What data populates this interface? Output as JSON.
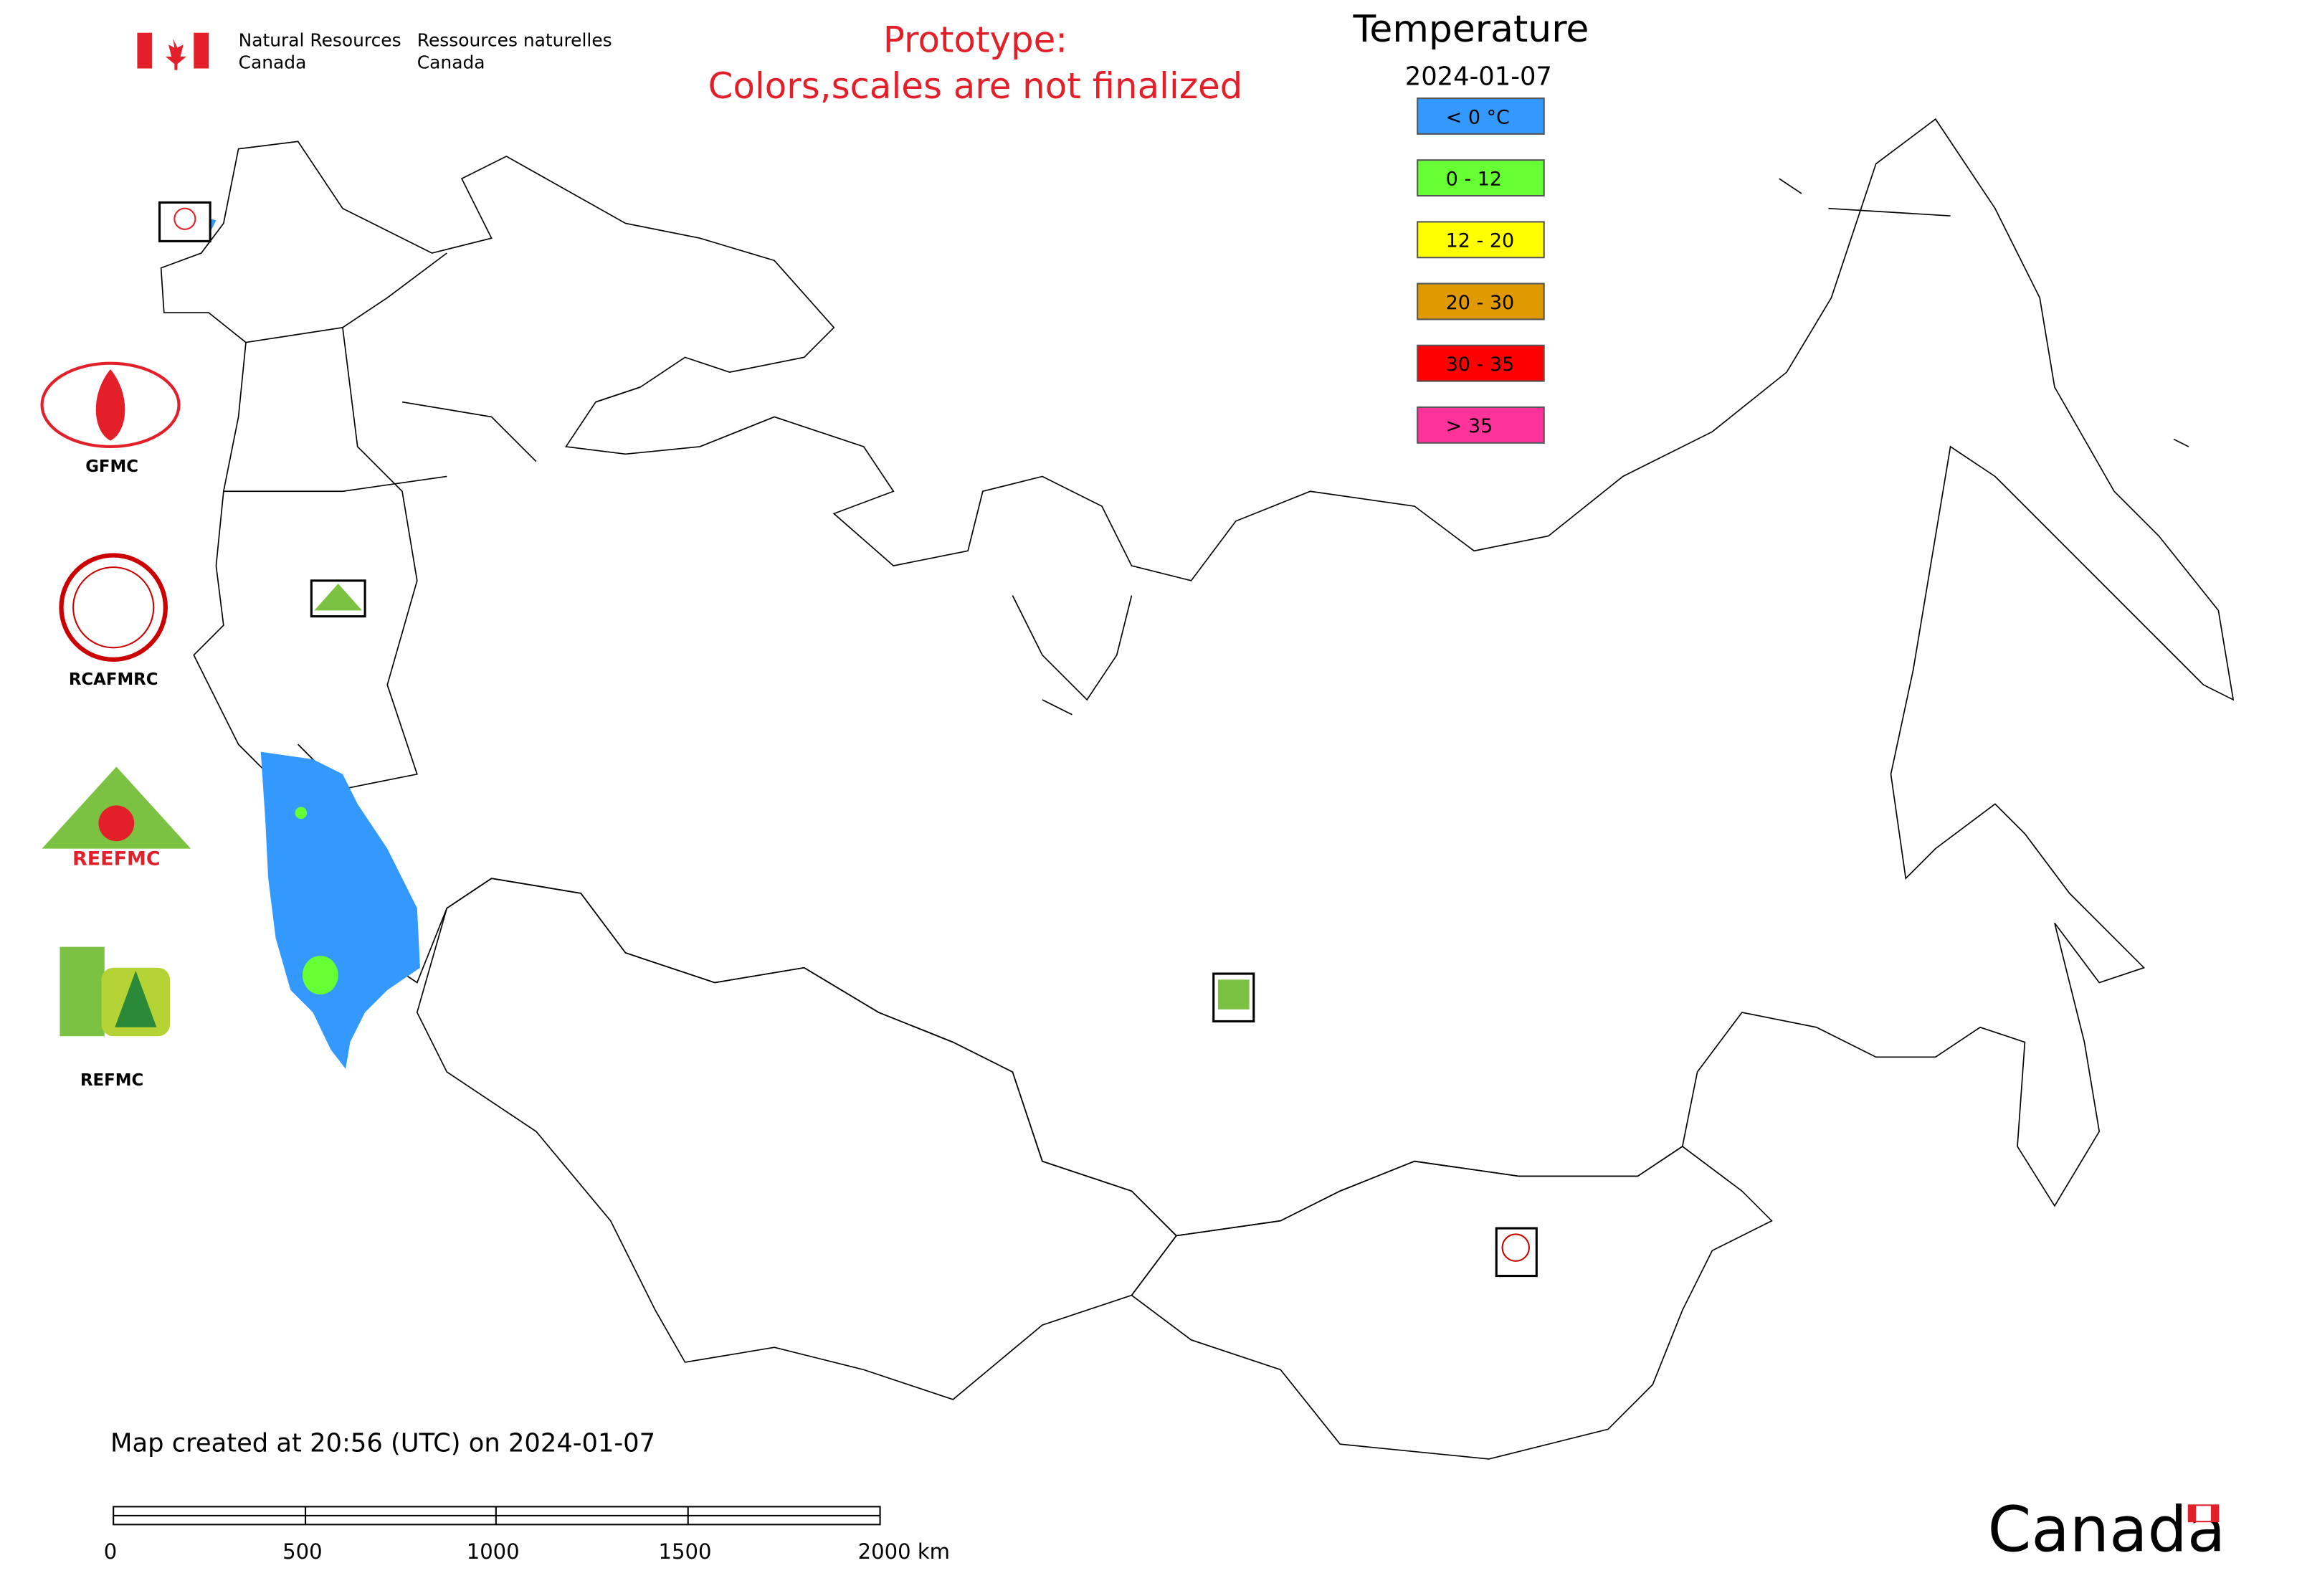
{
  "header": {
    "department_en": "Natural Resources",
    "country_en": "Canada",
    "department_fr": "Ressources naturelles",
    "country_fr": "Canada"
  },
  "notice": {
    "line1": "Prototype:",
    "line2": "Colors,scales are not finalized"
  },
  "legend": {
    "title": "Temperature",
    "date": "2024-01-07",
    "items": [
      {
        "label": "< 0 °C",
        "color": "#3399ff"
      },
      {
        "label": "0 - 12",
        "color": "#66ff33"
      },
      {
        "label": "12 - 20",
        "color": "#ffff00"
      },
      {
        "label": "20 - 30",
        "color": "#e09a00"
      },
      {
        "label": "30 - 35",
        "color": "#ff0000"
      },
      {
        "label": "> 35",
        "color": "#ff3399"
      }
    ]
  },
  "logos": [
    "GFMC",
    "RCAFMRC",
    "REEFMC",
    "REFMC"
  ],
  "footer": {
    "created": "Map created at 20:56 (UTC) on 2024-01-07",
    "wordmark": "Canada"
  },
  "scale_bar": {
    "labels": [
      "0",
      "500",
      "1000",
      "1500",
      "2000 km"
    ]
  }
}
